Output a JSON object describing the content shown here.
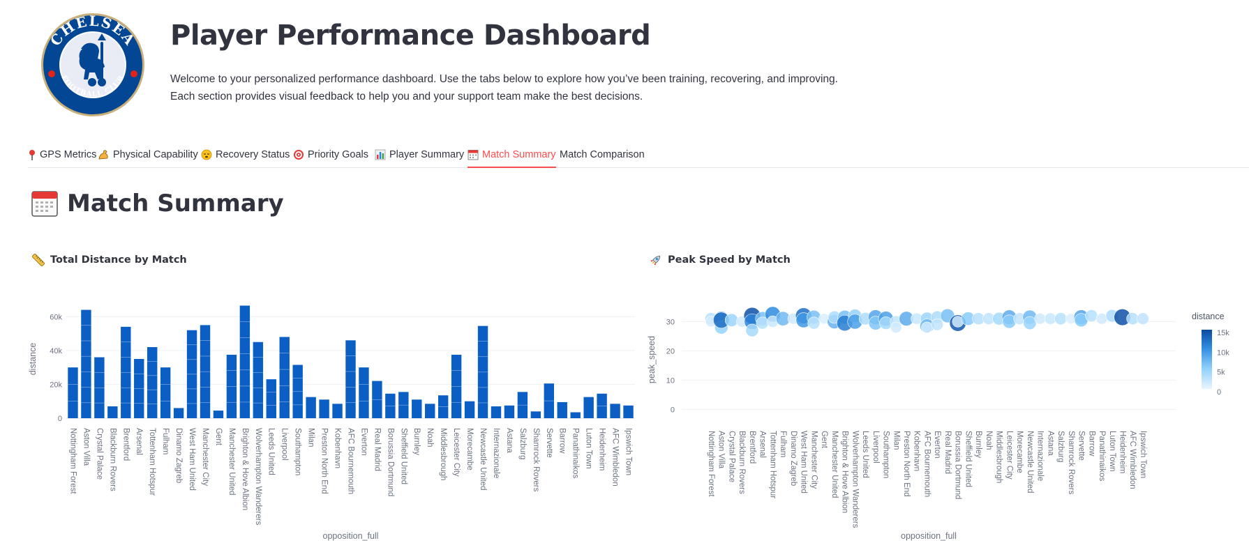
{
  "header": {
    "title": "Player Performance Dashboard",
    "intro_line1": "Welcome to your personalized performance dashboard. Use the tabs below to explore how you’ve been training, recovering, and improving.",
    "intro_line2": "Each section provides visual feedback to help you and your support team make the best decisions.",
    "logo_alt": "Chelsea Football Club crest",
    "logo_text_top": "CHELSEA",
    "logo_text_bottom": "FOOTBALL CLUB"
  },
  "tabs": [
    {
      "label": "GPS Metrics",
      "icon": "pin-icon",
      "active": false
    },
    {
      "label": "Physical Capability",
      "icon": "flexed-arm-icon",
      "active": false
    },
    {
      "label": "Recovery Status",
      "icon": "sleepy-face-icon",
      "active": false
    },
    {
      "label": "Priority Goals",
      "icon": "target-icon",
      "active": false
    },
    {
      "label": "Player Summary",
      "icon": "bar-chart-icon",
      "active": false
    },
    {
      "label": "Match Summary",
      "icon": "calendar-icon",
      "active": true
    },
    {
      "label": "Match Comparison",
      "icon": "",
      "active": false
    }
  ],
  "section": {
    "title": "Match Summary",
    "icon": "calendar-icon"
  },
  "colors": {
    "accent": "#ff4b4b",
    "bar": "#0b5fc4",
    "text": "#31333f"
  },
  "chart_data": [
    {
      "type": "bar",
      "title": "Total Distance by Match",
      "title_icon": "ruler-icon",
      "xlabel": "opposition_full",
      "ylabel": "distance",
      "ylim": [
        0,
        70000
      ],
      "yticks": [
        0,
        20000,
        40000,
        60000
      ],
      "ytick_labels": [
        "0",
        "20k",
        "40k",
        "60k"
      ],
      "grid": true,
      "categories": [
        "Nottingham Forest",
        "Aston Villa",
        "Crystal Palace",
        "Blackburn Rovers",
        "Brentford",
        "Arsenal",
        "Tottenham Hotspur",
        "Fulham",
        "Dinamo Zagreb",
        "West Ham United",
        "Manchester City",
        "Gent",
        "Manchester United",
        "Brighton & Hove Albion",
        "Wolverhampton Wanderers",
        "Leeds United",
        "Liverpool",
        "Southampton",
        "Milan",
        "Preston North End",
        "Kobenhavn",
        "AFC Bournemouth",
        "Everton",
        "Real Madrid",
        "Borussia Dortmund",
        "Sheffield United",
        "Burnley",
        "Noah",
        "Middlesbrough",
        "Leicester City",
        "Morecambe",
        "Newcastle United",
        "Internazionale",
        "Astana",
        "Salzburg",
        "Shamrock Rovers",
        "Servette",
        "Barrow",
        "Panathinaikos",
        "Luton Town",
        "Heidenheim",
        "AFC Wimbledon",
        "Ipswich Town"
      ],
      "values": [
        30000,
        64000,
        36000,
        7000,
        54000,
        35000,
        42000,
        30000,
        6000,
        52000,
        55000,
        4500,
        37500,
        66500,
        45000,
        23000,
        48000,
        31500,
        12500,
        11000,
        8500,
        46000,
        30000,
        22000,
        14500,
        15500,
        11000,
        8500,
        13500,
        37500,
        10000,
        54500,
        7000,
        7500,
        15500,
        4000,
        20500,
        9500,
        3500,
        12500,
        14500,
        8500,
        7500
      ]
    },
    {
      "type": "scatter",
      "title": "Peak Speed by Match",
      "title_icon": "rocket-icon",
      "xlabel": "opposition_full",
      "ylabel": "peak_speed",
      "ylim": [
        -3,
        37
      ],
      "yticks": [
        0,
        10,
        20,
        30
      ],
      "ytick_labels": [
        "0",
        "10",
        "20",
        "30"
      ],
      "grid": true,
      "legend": {
        "title": "distance",
        "placement": "right",
        "ticks": [
          "15k",
          "10k",
          "5k",
          "0"
        ]
      },
      "categories": [
        "Nottingham Forest",
        "Aston Villa",
        "Crystal Palace",
        "Blackburn Rovers",
        "Brentford",
        "Arsenal",
        "Tottenham Hotspur",
        "Fulham",
        "Dinamo Zagreb",
        "West Ham United",
        "Manchester City",
        "Gent",
        "Manchester United",
        "Brighton & Hove Albion",
        "Wolverhampton Wanderers",
        "Leeds United",
        "Liverpool",
        "Southampton",
        "Milan",
        "Preston North End",
        "Kobenhavn",
        "AFC Bournemouth",
        "Everton",
        "Real Madrid",
        "Borussia Dortmund",
        "Sheffield United",
        "Burnley",
        "Noah",
        "Middlesbrough",
        "Leicester City",
        "Morecambe",
        "Newcastle United",
        "Internazionale",
        "Astana",
        "Salzburg",
        "Shamrock Rovers",
        "Servette",
        "Barrow",
        "Panathinaikos",
        "Luton Town",
        "Heidenheim",
        "AFC Wimbledon",
        "Ipswich Town"
      ],
      "points": [
        {
          "x": "Nottingham Forest",
          "y": 31,
          "distance": 3000
        },
        {
          "x": "Nottingham Forest",
          "y": 30,
          "distance": 1200
        },
        {
          "x": "Aston Villa",
          "y": 31,
          "distance": 9000
        },
        {
          "x": "Aston Villa",
          "y": 28,
          "distance": 5000
        },
        {
          "x": "Aston Villa",
          "y": 30.5,
          "distance": 12500
        },
        {
          "x": "Crystal Palace",
          "y": 30.5,
          "distance": 4500
        },
        {
          "x": "Blackburn Rovers",
          "y": 30,
          "distance": 1500
        },
        {
          "x": "Brentford",
          "y": 32,
          "distance": 14500
        },
        {
          "x": "Brentford",
          "y": 30,
          "distance": 11000
        },
        {
          "x": "Brentford",
          "y": 27,
          "distance": 4000
        },
        {
          "x": "Arsenal",
          "y": 31,
          "distance": 6500
        },
        {
          "x": "Arsenal",
          "y": 29.5,
          "distance": 3000
        },
        {
          "x": "Tottenham Hotspur",
          "y": 32.5,
          "distance": 10500
        },
        {
          "x": "Tottenham Hotspur",
          "y": 30,
          "distance": 2000
        },
        {
          "x": "Fulham",
          "y": 31,
          "distance": 7000
        },
        {
          "x": "Dinamo Zagreb",
          "y": 31,
          "distance": 1500
        },
        {
          "x": "West Ham United",
          "y": 32,
          "distance": 12500
        },
        {
          "x": "West Ham United",
          "y": 30.5,
          "distance": 9500
        },
        {
          "x": "Manchester City",
          "y": 31.5,
          "distance": 6500
        },
        {
          "x": "Manchester City",
          "y": 29.5,
          "distance": 3000
        },
        {
          "x": "Gent",
          "y": 31,
          "distance": 1000
        },
        {
          "x": "Manchester United",
          "y": 30,
          "distance": 7500
        },
        {
          "x": "Manchester United",
          "y": 31.5,
          "distance": 3500
        },
        {
          "x": "Brighton & Hove Albion",
          "y": 31.5,
          "distance": 6500
        },
        {
          "x": "Brighton & Hove Albion",
          "y": 29.5,
          "distance": 11500
        },
        {
          "x": "Wolverhampton Wanderers",
          "y": 32,
          "distance": 5000
        },
        {
          "x": "Wolverhampton Wanderers",
          "y": 30,
          "distance": 9000
        },
        {
          "x": "Leeds United",
          "y": 31,
          "distance": 3500
        },
        {
          "x": "Liverpool",
          "y": 31.5,
          "distance": 8500
        },
        {
          "x": "Liverpool",
          "y": 29.5,
          "distance": 6000
        },
        {
          "x": "Southampton",
          "y": 31,
          "distance": 9000
        },
        {
          "x": "Southampton",
          "y": 29.5,
          "distance": 4000
        },
        {
          "x": "Milan",
          "y": 30,
          "distance": 2500
        },
        {
          "x": "Milan",
          "y": 28,
          "distance": 1500
        },
        {
          "x": "Preston North End",
          "y": 31,
          "distance": 8000
        },
        {
          "x": "Kobenhavn",
          "y": 31,
          "distance": 2000
        },
        {
          "x": "AFC Bournemouth",
          "y": 31,
          "distance": 4500
        },
        {
          "x": "AFC Bournemouth",
          "y": 28.5,
          "distance": 7000
        },
        {
          "x": "AFC Bournemouth",
          "y": 28,
          "distance": 1500
        },
        {
          "x": "Everton",
          "y": 31.5,
          "distance": 3500
        },
        {
          "x": "Everton",
          "y": 29,
          "distance": 2500
        },
        {
          "x": "Real Madrid",
          "y": 32,
          "distance": 6500
        },
        {
          "x": "Borussia Dortmund",
          "y": 29.5,
          "distance": 14000
        },
        {
          "x": "Borussia Dortmund",
          "y": 30,
          "distance": 1500
        },
        {
          "x": "Sheffield United",
          "y": 31,
          "distance": 5500
        },
        {
          "x": "Burnley",
          "y": 31,
          "distance": 3000
        },
        {
          "x": "Noah",
          "y": 31,
          "distance": 2500
        },
        {
          "x": "Middlesbrough",
          "y": 31,
          "distance": 4000
        },
        {
          "x": "Leicester City",
          "y": 31.5,
          "distance": 8000
        },
        {
          "x": "Leicester City",
          "y": 30,
          "distance": 5500
        },
        {
          "x": "Morecambe",
          "y": 31,
          "distance": 2500
        },
        {
          "x": "Newcastle United",
          "y": 31.5,
          "distance": 7000
        },
        {
          "x": "Newcastle United",
          "y": 29.5,
          "distance": 4500
        },
        {
          "x": "Internazionale",
          "y": 31,
          "distance": 1500
        },
        {
          "x": "Astana",
          "y": 31,
          "distance": 2000
        },
        {
          "x": "Salzburg",
          "y": 31,
          "distance": 3000
        },
        {
          "x": "Shamrock Rovers",
          "y": 31,
          "distance": 1000
        },
        {
          "x": "Servette",
          "y": 31.5,
          "distance": 8500
        },
        {
          "x": "Servette",
          "y": 30.5,
          "distance": 5500
        },
        {
          "x": "Barrow",
          "y": 32,
          "distance": 3000
        },
        {
          "x": "Panathinaikos",
          "y": 31,
          "distance": 1500
        },
        {
          "x": "Luton Town",
          "y": 32,
          "distance": 3500
        },
        {
          "x": "Heidenheim",
          "y": 31.5,
          "distance": 14500
        },
        {
          "x": "AFC Wimbledon",
          "y": 31,
          "distance": 3000
        },
        {
          "x": "Ipswich Town",
          "y": 31,
          "distance": 2500
        }
      ]
    }
  ]
}
